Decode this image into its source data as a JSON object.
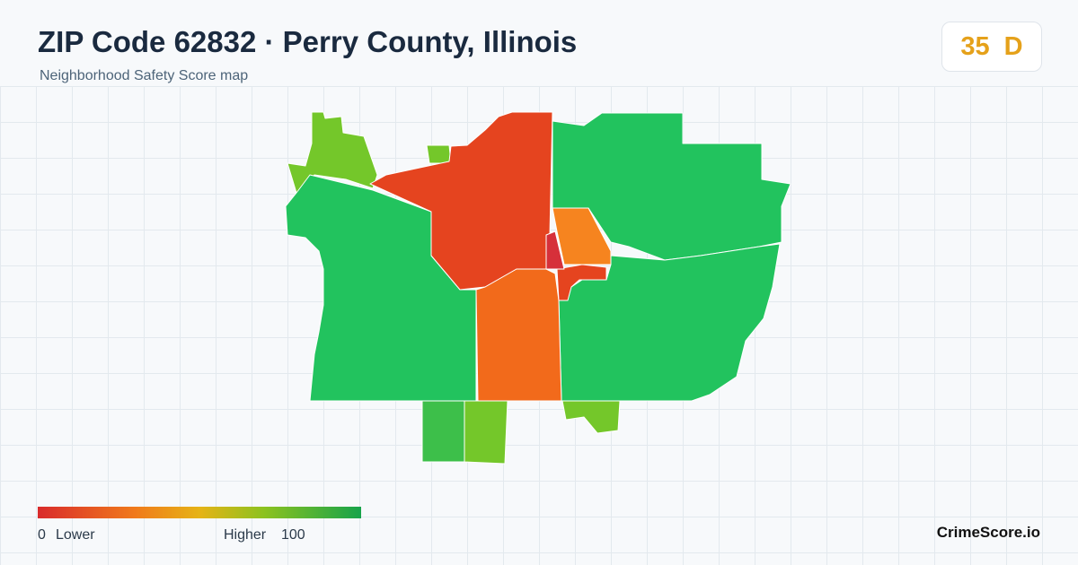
{
  "header": {
    "title": "ZIP Code 62832 · Perry County, Illinois",
    "subtitle": "Neighborhood Safety Score map"
  },
  "score": {
    "value": 35,
    "grade": "D"
  },
  "legend": {
    "min": 0,
    "min_label": "Lower",
    "max_label": "Higher",
    "max": 100
  },
  "brand": "CrimeScore.io"
}
